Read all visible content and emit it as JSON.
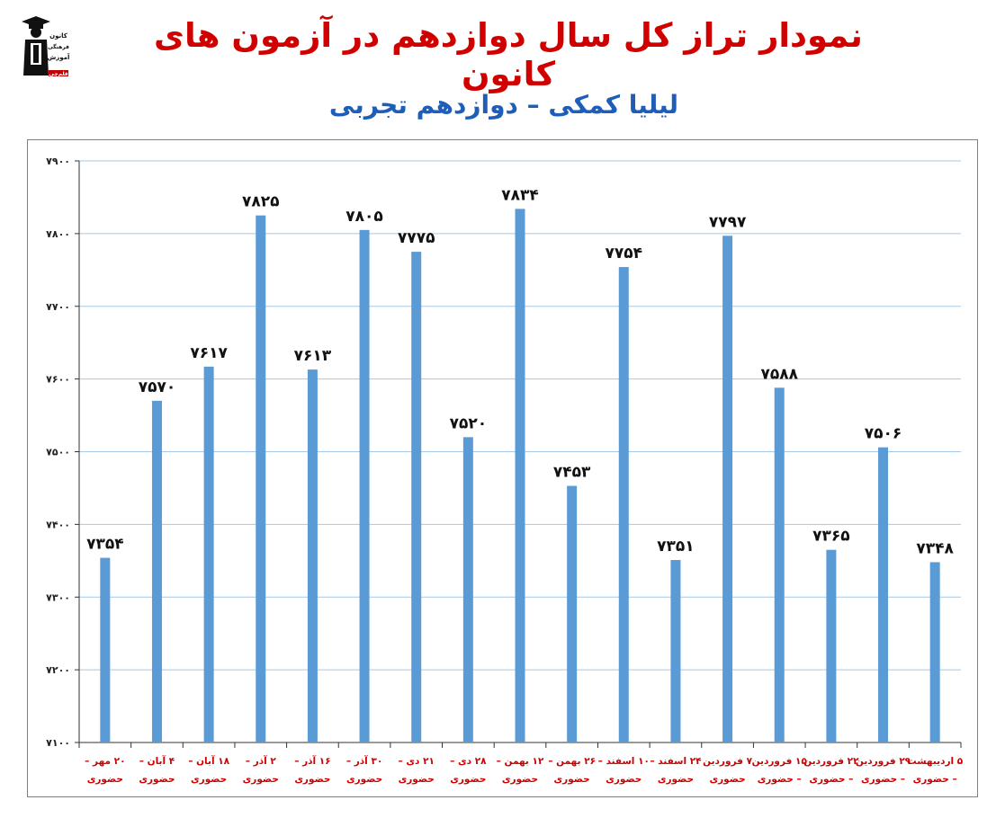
{
  "header": {
    "title": "نمودار تراز کل سال دوازدهم در آزمون های کانون",
    "subtitle": "لیلیا کمکی – دوازدهم تجربی"
  },
  "logo": {
    "icon": "graduate-figure-logo",
    "lines": [
      "کانون",
      "فرهنگی",
      "آموزش",
      "قلم‌چی"
    ]
  },
  "colors": {
    "bar": "#5b9bd5",
    "title": "#d00000",
    "subtitle": "#1f5eb8",
    "category_label": "#d00000",
    "grid": "#a6c8e6"
  },
  "chart_data": {
    "type": "bar",
    "title": "نمودار تراز کل سال دوازدهم در آزمون های کانون",
    "subtitle": "لیلیا کمکی – دوازدهم تجربی",
    "xlabel": "",
    "ylabel": "",
    "ylim": [
      7100,
      7900
    ],
    "yticks": [
      7100,
      7200,
      7300,
      7400,
      7500,
      7600,
      7700,
      7800,
      7900
    ],
    "ytick_labels": [
      "۷۱۰۰",
      "۷۲۰۰",
      "۷۳۰۰",
      "۷۴۰۰",
      "۷۵۰۰",
      "۷۶۰۰",
      "۷۷۰۰",
      "۷۸۰۰",
      "۷۹۰۰"
    ],
    "grid": true,
    "legend": "none",
    "categories": [
      [
        "۲۰ مهر –",
        "حضوری"
      ],
      [
        "۴ آبان –",
        "حضوری"
      ],
      [
        "۱۸ آبان –",
        "حضوری"
      ],
      [
        "۲ آذر –",
        "حضوری"
      ],
      [
        "۱۶ آذر –",
        "حضوری"
      ],
      [
        "۳۰ آذر –",
        "حضوری"
      ],
      [
        "۲۱ دی –",
        "حضوری"
      ],
      [
        "۲۸ دی –",
        "حضوری"
      ],
      [
        "۱۲ بهمن –",
        "حضوری"
      ],
      [
        "۲۶ بهمن –",
        "حضوری"
      ],
      [
        "۱۰ اسفند –",
        "حضوری"
      ],
      [
        "۲۴ اسفند –",
        "حضوری"
      ],
      [
        "۷ فروردین",
        "حضوری"
      ],
      [
        "۱۵ فروردین",
        "– حضوری"
      ],
      [
        "۲۲ فروردین",
        "– حضوری"
      ],
      [
        "۲۹ فروردین",
        "– حضوری"
      ],
      [
        "۵ اردیبهشت",
        "– حضوری"
      ]
    ],
    "values": [
      7354,
      7570,
      7617,
      7825,
      7613,
      7805,
      7775,
      7520,
      7834,
      7453,
      7754,
      7351,
      7797,
      7588,
      7365,
      7506,
      7348
    ],
    "value_labels": [
      "۷۳۵۴",
      "۷۵۷۰",
      "۷۶۱۷",
      "۷۸۲۵",
      "۷۶۱۳",
      "۷۸۰۵",
      "۷۷۷۵",
      "۷۵۲۰",
      "۷۸۳۴",
      "۷۴۵۳",
      "۷۷۵۴",
      "۷۳۵۱",
      "۷۷۹۷",
      "۷۵۸۸",
      "۷۳۶۵",
      "۷۵۰۶",
      "۷۳۴۸"
    ]
  }
}
